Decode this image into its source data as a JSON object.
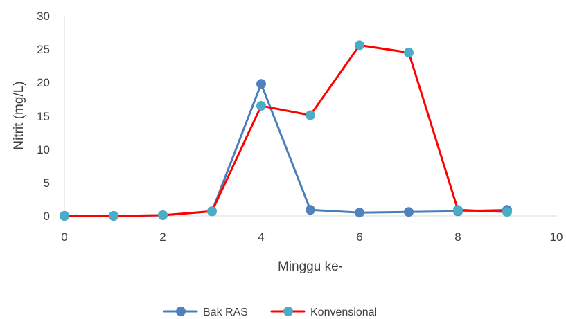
{
  "chart_data": {
    "type": "line",
    "title": "",
    "xlabel": "Minggu ke-",
    "ylabel": "Nitrit  (mg/L)",
    "xlim": [
      0,
      10
    ],
    "ylim": [
      0,
      30
    ],
    "x_ticks": [
      "0",
      "2",
      "4",
      "6",
      "8",
      "10"
    ],
    "y_ticks": [
      "0",
      "5",
      "10",
      "15",
      "20",
      "25",
      "30"
    ],
    "grid": false,
    "legend_position": "bottom",
    "series": [
      {
        "name": "Bak RAS",
        "line_color": "#4A7EBB",
        "marker_color": "#4F81BD",
        "x": [
          0,
          1,
          2,
          3,
          4,
          5,
          6,
          7,
          8,
          9
        ],
        "y": [
          0,
          0,
          0.1,
          0.7,
          19.8,
          0.9,
          0.5,
          0.6,
          0.7,
          0.9
        ]
      },
      {
        "name": "Konvensional",
        "line_color": "#FF0000",
        "marker_color": "#4BACC6",
        "x": [
          0,
          1,
          2,
          3,
          4,
          5,
          6,
          7,
          8,
          9
        ],
        "y": [
          0,
          0,
          0.1,
          0.7,
          16.5,
          15.1,
          25.6,
          24.5,
          0.9,
          0.6
        ]
      }
    ]
  }
}
